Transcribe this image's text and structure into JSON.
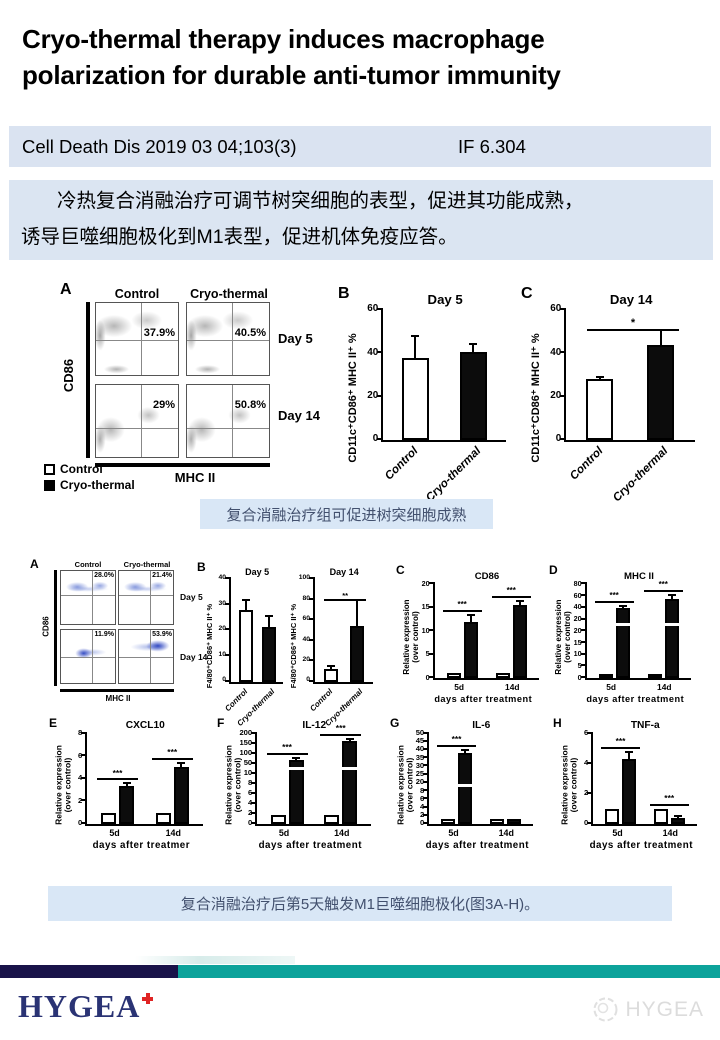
{
  "title": {
    "line1": "Cryo-thermal therapy induces macrophage",
    "line2": "polarization for durable anti-tumor immunity"
  },
  "journal": {
    "citation": "Cell Death Dis 2019 03 04;103(3)",
    "impact_factor": "IF 6.304"
  },
  "summary": {
    "line1": "冷热复合消融治疗可调节树突细胞的表型，促进其功能成熟，",
    "line2": "诱导巨噬细胞极化到M1表型，促进机体免疫应答。"
  },
  "captions": {
    "fig1": "复合消融治疗组可促进树突细胞成熟",
    "fig2": "复合消融治疗后第5天触发M1巨噬细胞极化(图3A-H)。"
  },
  "figure_labels": {
    "f1": {
      "a": "A",
      "b": "B",
      "c": "C"
    },
    "f2": {
      "a": "A",
      "b": "B",
      "c": "C",
      "d": "D",
      "e": "E",
      "f": "F",
      "g": "G",
      "h": "H"
    }
  },
  "legend": [
    {
      "label": "Control",
      "fill": "white"
    },
    {
      "label": "Cryo-thermal",
      "fill": "black"
    }
  ],
  "footer": {
    "logo_text": "HYGEA",
    "watermark_text": "HYGEA"
  },
  "colors": {
    "accent_blue_bar": "#dae3f1",
    "caption_bg": "#d9e7f6",
    "caption_text": "#42506e",
    "footer_navy": "#191349",
    "footer_teal": "#0da39b",
    "logo_navy": "#2a3374",
    "logo_red": "#e02424"
  },
  "chart_data": {
    "fig1a": {
      "type": "flow-contour",
      "x_axis": "MHC II",
      "y_axis": "CD86",
      "columns": [
        "Control",
        "Cryo-thermal"
      ],
      "rows": [
        "Day 5",
        "Day 14"
      ],
      "percentages": [
        [
          "37.9%",
          "40.5%"
        ],
        [
          "29%",
          "50.8%"
        ]
      ]
    },
    "fig1b": {
      "type": "bar",
      "title": "Day 5",
      "ylabel": "CD11c⁺CD86⁺ MHC II⁺ %",
      "ymax": 60,
      "yticks": [
        0,
        20,
        40,
        60
      ],
      "rotate_labels": true,
      "groups": [
        {
          "label": "Control",
          "bars": [
            {
              "value": 38,
              "err": 10,
              "fill": "white"
            }
          ]
        },
        {
          "label": "Cryo-thermal",
          "bars": [
            {
              "value": 40.5,
              "err": 4,
              "fill": "black"
            }
          ]
        }
      ]
    },
    "fig1c": {
      "type": "bar",
      "title": "Day 14",
      "ylabel": "CD11c⁺CD86⁺ MHC II⁺ %",
      "ymax": 60,
      "yticks": [
        0,
        20,
        40,
        60
      ],
      "rotate_labels": true,
      "sig_all": "*",
      "sig_top": "7%",
      "groups": [
        {
          "label": "Control",
          "bars": [
            {
              "value": 28,
              "err": 1,
              "fill": "white"
            }
          ]
        },
        {
          "label": "Cryo-thermal",
          "bars": [
            {
              "value": 44,
              "err": 7,
              "fill": "black"
            }
          ]
        }
      ]
    },
    "fig2a": {
      "type": "flow-dot",
      "x_axis": "MHC II",
      "y_axis": "CD86",
      "columns": [
        "Control",
        "Cryo-thermal"
      ],
      "rows": [
        "Day 5",
        "Day 14"
      ],
      "percentages": [
        [
          "28.0%",
          "21.4%"
        ],
        [
          "11.9%",
          "53.9%"
        ]
      ]
    },
    "fig2b1": {
      "type": "bar",
      "title": "Day 5",
      "ylabel": "F4/80⁺CD86⁺ MHC II⁺ %",
      "ymax": 40,
      "yticks": [
        0,
        10,
        20,
        30,
        40
      ],
      "rotate_labels": true,
      "groups": [
        {
          "label": "Control",
          "bars": [
            {
              "value": 28,
              "err": 4,
              "fill": "white"
            }
          ]
        },
        {
          "label": "Cryo-thermal",
          "bars": [
            {
              "value": 21.5,
              "err": 4,
              "fill": "black"
            }
          ]
        }
      ]
    },
    "fig2b2": {
      "type": "bar",
      "title": "Day 14",
      "ylabel": "F4/80⁺CD86⁺ MHC II⁺ %",
      "ymax": 100,
      "yticks": [
        0,
        20,
        40,
        60,
        80,
        100
      ],
      "rotate_labels": true,
      "sig_all": "**",
      "sig_top": "13%",
      "groups": [
        {
          "label": "Control",
          "bars": [
            {
              "value": 12,
              "err": 3,
              "fill": "white"
            }
          ]
        },
        {
          "label": "Cryo-thermal",
          "bars": [
            {
              "value": 54,
              "err": 26,
              "fill": "black"
            }
          ]
        }
      ]
    },
    "fig2c": {
      "type": "bar",
      "title": "CD86",
      "ylabel": "Relative expression",
      "ylabel2": "(over control)",
      "ymax": 20,
      "yticks": [
        0,
        5,
        10,
        15,
        20
      ],
      "xlabel": "days after treatment",
      "groups": [
        {
          "label": "5d",
          "sig": "***",
          "bars": [
            {
              "value": 1,
              "fill": "white"
            },
            {
              "value": 12,
              "err": 1.5,
              "fill": "black"
            }
          ]
        },
        {
          "label": "14d",
          "sig": "***",
          "bars": [
            {
              "value": 1,
              "fill": "white"
            },
            {
              "value": 15.5,
              "err": 1,
              "fill": "black"
            }
          ]
        }
      ]
    },
    "fig2d": {
      "type": "bar",
      "title": "MHC II",
      "ylabel": "Relative expression",
      "ylabel2": "(over control)",
      "broken": true,
      "break_frac": 0.56,
      "yticks": [
        "0",
        "5",
        "10",
        "15",
        "20",
        "20",
        "40",
        "60",
        "80"
      ],
      "xlabel": "days after treatment",
      "groups": [
        {
          "label": "5d",
          "sig": "***",
          "bars": [
            {
              "value": 1,
              "frac": 0.045,
              "fill": "white"
            },
            {
              "value": 40,
              "frac": 0.75,
              "err_frac": 0.02,
              "fill": "black"
            }
          ]
        },
        {
          "label": "14d",
          "sig": "***",
          "bars": [
            {
              "value": 1,
              "frac": 0.045,
              "fill": "white"
            },
            {
              "value": 55,
              "frac": 0.84,
              "err_frac": 0.05,
              "fill": "black"
            }
          ]
        }
      ]
    },
    "fig2e": {
      "type": "bar",
      "title": "CXCL10",
      "ylabel": "Relative expression",
      "ylabel2": "(over control)",
      "ymax": 8,
      "yticks": [
        0,
        2,
        4,
        6,
        8
      ],
      "xlabel": "days after treatmer",
      "groups": [
        {
          "label": "5d",
          "sig": "***",
          "bars": [
            {
              "value": 1,
              "fill": "white"
            },
            {
              "value": 3.4,
              "err": 0.2,
              "fill": "black"
            }
          ]
        },
        {
          "label": "14d",
          "sig": "***",
          "bars": [
            {
              "value": 1,
              "fill": "white"
            },
            {
              "value": 5,
              "err": 0.4,
              "fill": "black"
            }
          ]
        }
      ]
    },
    "fig2f": {
      "type": "bar",
      "title": "IL-12",
      "ylabel": "Relative expression",
      "ylabel2": "(over control)",
      "broken": true,
      "break_frac": 0.6,
      "yticks": [
        "0",
        "2",
        "4",
        "6",
        "8",
        "10",
        "50",
        "100",
        "150",
        "200"
      ],
      "xlabel": "days after treatment",
      "groups": [
        {
          "label": "5d",
          "sig": "***",
          "bars": [
            {
              "value": 1,
              "frac": 0.1,
              "fill": "white"
            },
            {
              "value": 75,
              "frac": 0.71,
              "err_frac": 0.02,
              "fill": "black"
            }
          ]
        },
        {
          "label": "14d",
          "sig": "***",
          "bars": [
            {
              "value": 1,
              "frac": 0.1,
              "fill": "white"
            },
            {
              "value": 168,
              "frac": 0.92,
              "err_frac": 0.02,
              "fill": "black"
            }
          ]
        }
      ]
    },
    "fig2g": {
      "type": "bar",
      "title": "IL-6",
      "ylabel": "Relative expression",
      "ylabel2": "(over control)",
      "broken": true,
      "break_frac": 0.41,
      "yticks": [
        "0",
        "2",
        "4",
        "6",
        "8",
        "20",
        "25",
        "30",
        "35",
        "40",
        "45",
        "50"
      ],
      "xlabel": "days after treatment",
      "groups": [
        {
          "label": "5d",
          "sig": "***",
          "bars": [
            {
              "value": 1,
              "frac": 0.05,
              "fill": "white"
            },
            {
              "value": 38,
              "frac": 0.78,
              "err_frac": 0.04,
              "fill": "black"
            }
          ]
        },
        {
          "label": "14d",
          "bars": [
            {
              "value": 1,
              "frac": 0.05,
              "fill": "white"
            },
            {
              "value": 1.2,
              "frac": 0.06,
              "fill": "black"
            }
          ]
        }
      ]
    },
    "fig2h": {
      "type": "bar",
      "title": "TNF-a",
      "ylabel": "Relative expression",
      "ylabel2": "(over control)",
      "ymax": 6,
      "yticks": [
        0,
        2,
        4,
        6
      ],
      "xlabel": "days after treatment",
      "groups": [
        {
          "label": "5d",
          "sig": "***",
          "bars": [
            {
              "value": 1,
              "fill": "white"
            },
            {
              "value": 4.3,
              "err": 0.5,
              "fill": "black"
            }
          ]
        },
        {
          "label": "14d",
          "sig": "***",
          "bars": [
            {
              "value": 1,
              "fill": "white"
            },
            {
              "value": 0.4,
              "err": 0.1,
              "fill": "black"
            }
          ]
        }
      ]
    }
  }
}
